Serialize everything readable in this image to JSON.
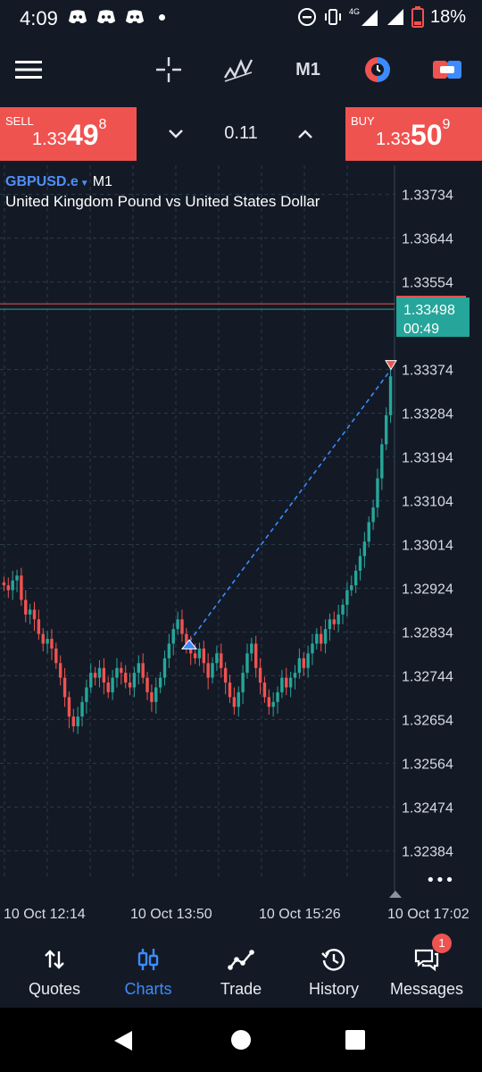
{
  "status_bar": {
    "time": "4:09",
    "network": "4G",
    "battery": "18%",
    "notification_icons": [
      "discord-icon",
      "discord-icon",
      "discord-icon"
    ]
  },
  "toolbar": {
    "timeframe": "M1",
    "icons": [
      "menu-icon",
      "crosshair-icon",
      "indicators-icon",
      "one-click-trading-icon",
      "trade-toggle-icon"
    ]
  },
  "trade": {
    "sell_label": "SELL",
    "sell_price_prefix": "1.33",
    "sell_price_big": "49",
    "sell_price_sup": "8",
    "buy_label": "BUY",
    "buy_price_prefix": "1.33",
    "buy_price_big": "50",
    "buy_price_sup": "9",
    "lot": "0.11"
  },
  "chart": {
    "symbol": "GBPUSD.e",
    "timeframe": "M1",
    "description": "United Kingdom Pound vs United States Dollar",
    "current_price": "1.33498",
    "countdown": "00:49",
    "ask_line_label": "1.33509",
    "more_label": "•••",
    "colors": {
      "up": "#26a69a",
      "down": "#ef5350",
      "grid": "#2a3a4a",
      "background": "#131a26",
      "trend": "#3d8bfd"
    }
  },
  "chart_data": {
    "type": "candlestick",
    "symbol": "GBPUSD.e",
    "timeframe": "M1",
    "y_ticks": [
      "1.33734",
      "1.33644",
      "1.33554",
      "1.33374",
      "1.33284",
      "1.33194",
      "1.33104",
      "1.33014",
      "1.32924",
      "1.32834",
      "1.32744",
      "1.32654",
      "1.32564",
      "1.32474",
      "1.32384"
    ],
    "x_ticks": [
      "10 Oct 12:14",
      "10 Oct 13:50",
      "10 Oct 15:26",
      "10 Oct 17:02"
    ],
    "ylim": [
      1.32324,
      1.33794
    ],
    "close_path": [
      1.3293,
      1.3292,
      1.3294,
      1.3295,
      1.329,
      1.3287,
      1.3288,
      1.3286,
      1.3283,
      1.3281,
      1.3282,
      1.328,
      1.3277,
      1.3274,
      1.327,
      1.3266,
      1.3264,
      1.3266,
      1.3269,
      1.3272,
      1.3275,
      1.3274,
      1.3276,
      1.3273,
      1.3271,
      1.3274,
      1.3276,
      1.3275,
      1.3273,
      1.3272,
      1.3275,
      1.3277,
      1.3274,
      1.3271,
      1.3269,
      1.3272,
      1.3274,
      1.3278,
      1.3281,
      1.3284,
      1.3286,
      1.3283,
      1.3281,
      1.3279,
      1.3278,
      1.328,
      1.3277,
      1.3274,
      1.3277,
      1.3279,
      1.3276,
      1.3273,
      1.327,
      1.3268,
      1.3271,
      1.3275,
      1.3279,
      1.3281,
      1.3276,
      1.3273,
      1.327,
      1.3268,
      1.3269,
      1.3271,
      1.3274,
      1.3272,
      1.3274,
      1.3275,
      1.3278,
      1.3276,
      1.3279,
      1.3281,
      1.3283,
      1.3281,
      1.3284,
      1.3286,
      1.3285,
      1.3287,
      1.3289,
      1.3292,
      1.3293,
      1.3296,
      1.3299,
      1.3302,
      1.3306,
      1.3309,
      1.3315,
      1.3322,
      1.3328,
      1.3336
    ],
    "trend_line": {
      "from": 1.32814,
      "to": 1.33374
    }
  },
  "bottom_nav": [
    {
      "label": "Quotes",
      "icon": "quotes-icon"
    },
    {
      "label": "Charts",
      "icon": "charts-icon"
    },
    {
      "label": "Trade",
      "icon": "trade-icon"
    },
    {
      "label": "History",
      "icon": "history-icon"
    },
    {
      "label": "Messages",
      "icon": "messages-icon",
      "badge": "1"
    }
  ]
}
